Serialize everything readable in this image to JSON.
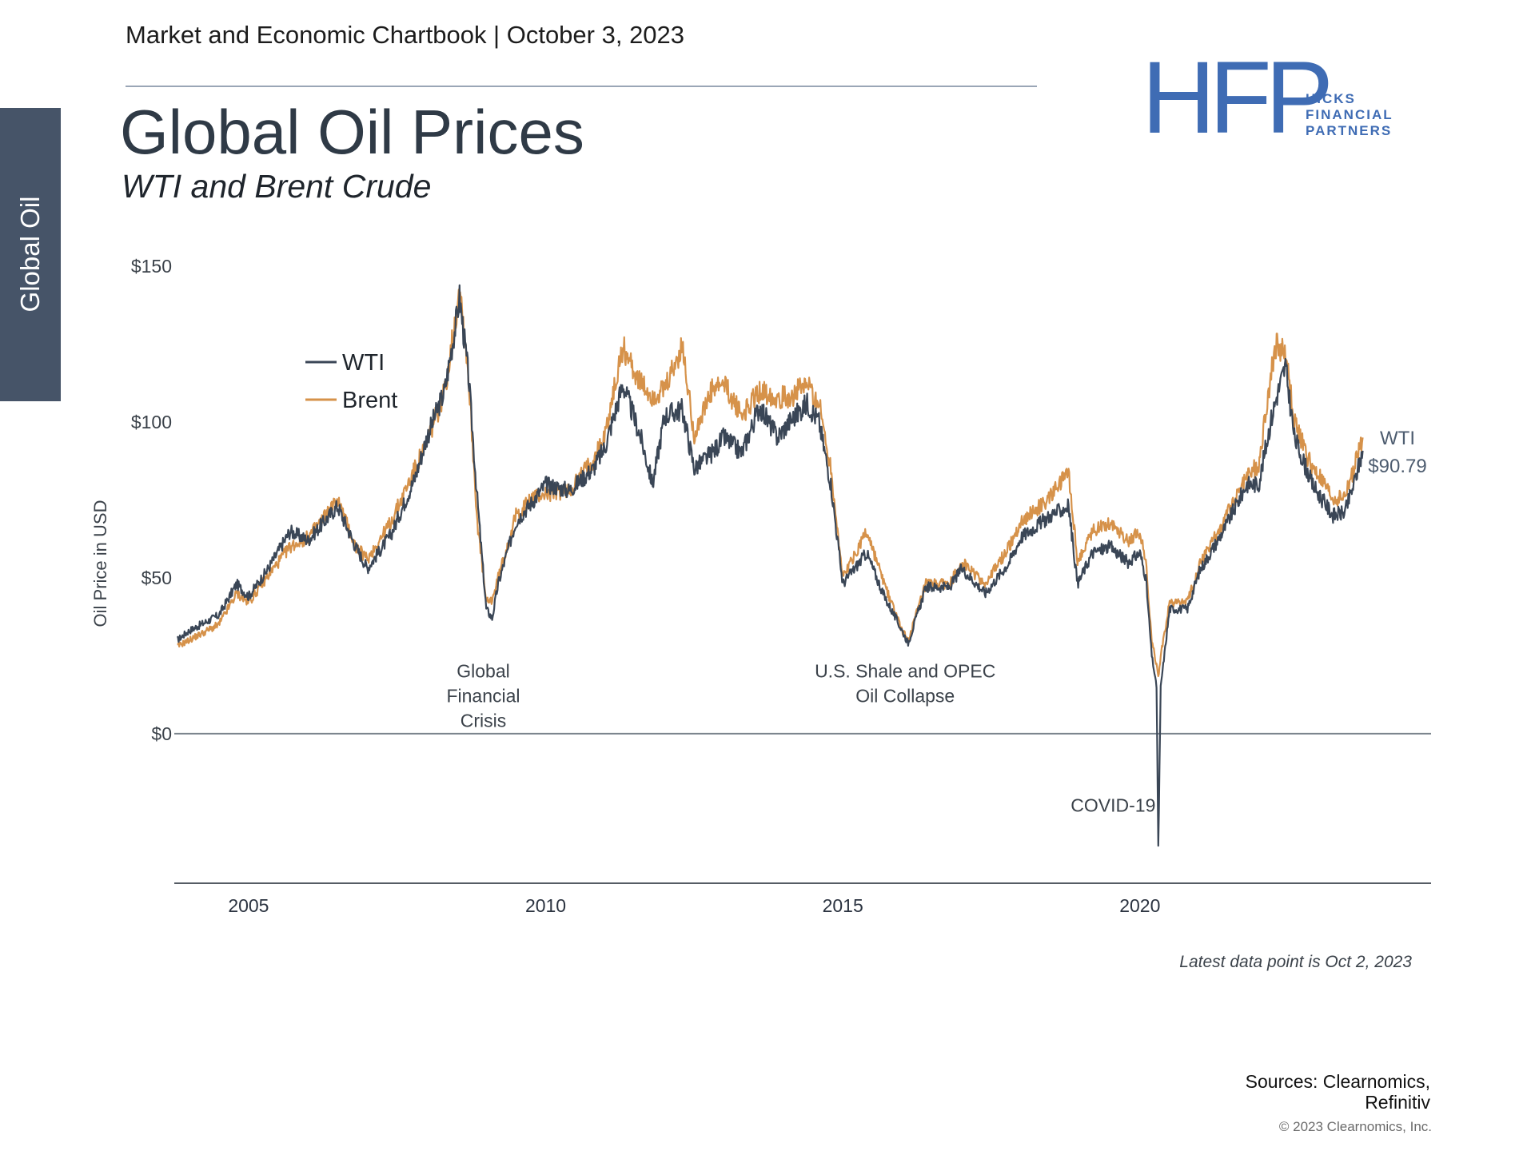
{
  "header": {
    "text": "Market and Economic Chartbook | October 3, 2023"
  },
  "title": "Global Oil Prices",
  "subtitle": "WTI and Brent Crude",
  "side_tab": {
    "label": "Global Oil"
  },
  "logo": {
    "mark": "HFP",
    "words": [
      "HICKS",
      "FINANCIAL",
      "PARTNERS"
    ]
  },
  "footer": {
    "note": "Latest data point is Oct 2, 2023",
    "sources": [
      "Sources: Clearnomics,",
      "Refinitiv"
    ],
    "copyright": "© 2023 Clearnomics, Inc."
  },
  "colors": {
    "wti": "#3a4656",
    "brent": "#d6924a",
    "axis": "#7a838c"
  },
  "chart_data": {
    "type": "line",
    "title": "Global Oil Prices",
    "subtitle": "WTI and Brent Crude",
    "ylabel": "Oil Price in USD",
    "ylim": [
      -48,
      150
    ],
    "xlim": [
      2003.75,
      2024.9
    ],
    "y_ticks": [
      {
        "value": 150,
        "label": "$150"
      },
      {
        "value": 100,
        "label": "$100"
      },
      {
        "value": 50,
        "label": "$50"
      },
      {
        "value": 0,
        "label": "$0"
      }
    ],
    "x_ticks": [
      {
        "value": 2005,
        "label": "2005"
      },
      {
        "value": 2010,
        "label": "2010"
      },
      {
        "value": 2015,
        "label": "2015"
      },
      {
        "value": 2020,
        "label": "2020"
      }
    ],
    "legend": {
      "placement": "top-left",
      "entries": [
        "WTI",
        "Brent"
      ]
    },
    "series": [
      {
        "name": "WTI",
        "points": [
          [
            2003.8,
            30
          ],
          [
            2004.0,
            33
          ],
          [
            2004.5,
            38
          ],
          [
            2004.8,
            48
          ],
          [
            2005.0,
            44
          ],
          [
            2005.3,
            52
          ],
          [
            2005.7,
            65
          ],
          [
            2006.0,
            62
          ],
          [
            2006.5,
            73
          ],
          [
            2006.8,
            60
          ],
          [
            2007.0,
            53
          ],
          [
            2007.4,
            64
          ],
          [
            2007.8,
            82
          ],
          [
            2008.0,
            95
          ],
          [
            2008.3,
            110
          ],
          [
            2008.5,
            133
          ],
          [
            2008.55,
            140
          ],
          [
            2008.7,
            115
          ],
          [
            2008.85,
            75
          ],
          [
            2009.0,
            40
          ],
          [
            2009.1,
            37
          ],
          [
            2009.2,
            48
          ],
          [
            2009.5,
            68
          ],
          [
            2009.8,
            75
          ],
          [
            2010.0,
            80
          ],
          [
            2010.4,
            78
          ],
          [
            2010.8,
            85
          ],
          [
            2011.0,
            92
          ],
          [
            2011.3,
            112
          ],
          [
            2011.6,
            95
          ],
          [
            2011.8,
            80
          ],
          [
            2012.0,
            102
          ],
          [
            2012.3,
            104
          ],
          [
            2012.5,
            85
          ],
          [
            2012.8,
            90
          ],
          [
            2013.0,
            95
          ],
          [
            2013.3,
            90
          ],
          [
            2013.6,
            105
          ],
          [
            2013.9,
            95
          ],
          [
            2014.1,
            100
          ],
          [
            2014.4,
            106
          ],
          [
            2014.6,
            100
          ],
          [
            2014.8,
            80
          ],
          [
            2015.0,
            48
          ],
          [
            2015.4,
            58
          ],
          [
            2015.7,
            44
          ],
          [
            2016.0,
            33
          ],
          [
            2016.1,
            29
          ],
          [
            2016.4,
            47
          ],
          [
            2016.8,
            47
          ],
          [
            2017.0,
            53
          ],
          [
            2017.4,
            45
          ],
          [
            2017.8,
            55
          ],
          [
            2018.0,
            63
          ],
          [
            2018.5,
            70
          ],
          [
            2018.8,
            73
          ],
          [
            2018.95,
            48
          ],
          [
            2019.2,
            58
          ],
          [
            2019.5,
            60
          ],
          [
            2019.8,
            55
          ],
          [
            2020.0,
            58
          ],
          [
            2020.1,
            50
          ],
          [
            2020.2,
            25
          ],
          [
            2020.28,
            15
          ],
          [
            2020.31,
            -37
          ],
          [
            2020.35,
            15
          ],
          [
            2020.5,
            40
          ],
          [
            2020.8,
            40
          ],
          [
            2021.0,
            52
          ],
          [
            2021.4,
            65
          ],
          [
            2021.8,
            80
          ],
          [
            2022.0,
            80
          ],
          [
            2022.2,
            100
          ],
          [
            2022.3,
            108
          ],
          [
            2022.45,
            118
          ],
          [
            2022.6,
            95
          ],
          [
            2022.9,
            80
          ],
          [
            2023.0,
            77
          ],
          [
            2023.25,
            70
          ],
          [
            2023.45,
            71
          ],
          [
            2023.6,
            80
          ],
          [
            2023.75,
            90.79
          ]
        ]
      },
      {
        "name": "Brent",
        "points": [
          [
            2003.8,
            28
          ],
          [
            2004.0,
            30
          ],
          [
            2004.5,
            35
          ],
          [
            2004.8,
            45
          ],
          [
            2005.0,
            42
          ],
          [
            2005.3,
            50
          ],
          [
            2005.7,
            60
          ],
          [
            2006.0,
            63
          ],
          [
            2006.5,
            75
          ],
          [
            2006.8,
            60
          ],
          [
            2007.0,
            56
          ],
          [
            2007.4,
            68
          ],
          [
            2007.8,
            85
          ],
          [
            2008.0,
            93
          ],
          [
            2008.3,
            110
          ],
          [
            2008.5,
            135
          ],
          [
            2008.55,
            145
          ],
          [
            2008.7,
            115
          ],
          [
            2008.85,
            68
          ],
          [
            2009.0,
            42
          ],
          [
            2009.1,
            43
          ],
          [
            2009.2,
            50
          ],
          [
            2009.5,
            70
          ],
          [
            2009.8,
            76
          ],
          [
            2010.0,
            77
          ],
          [
            2010.4,
            78
          ],
          [
            2010.8,
            88
          ],
          [
            2011.0,
            96
          ],
          [
            2011.3,
            124
          ],
          [
            2011.6,
            112
          ],
          [
            2011.8,
            108
          ],
          [
            2012.0,
            110
          ],
          [
            2012.3,
            124
          ],
          [
            2012.5,
            96
          ],
          [
            2012.8,
            110
          ],
          [
            2013.0,
            112
          ],
          [
            2013.3,
            102
          ],
          [
            2013.6,
            110
          ],
          [
            2013.9,
            108
          ],
          [
            2014.1,
            108
          ],
          [
            2014.4,
            112
          ],
          [
            2014.6,
            106
          ],
          [
            2014.8,
            85
          ],
          [
            2015.0,
            50
          ],
          [
            2015.4,
            65
          ],
          [
            2015.7,
            48
          ],
          [
            2016.0,
            33
          ],
          [
            2016.1,
            30
          ],
          [
            2016.4,
            48
          ],
          [
            2016.8,
            48
          ],
          [
            2017.0,
            55
          ],
          [
            2017.4,
            48
          ],
          [
            2017.8,
            60
          ],
          [
            2018.0,
            68
          ],
          [
            2018.5,
            76
          ],
          [
            2018.8,
            84
          ],
          [
            2018.95,
            55
          ],
          [
            2019.2,
            65
          ],
          [
            2019.5,
            68
          ],
          [
            2019.8,
            62
          ],
          [
            2020.0,
            65
          ],
          [
            2020.1,
            55
          ],
          [
            2020.2,
            30
          ],
          [
            2020.28,
            22
          ],
          [
            2020.31,
            18
          ],
          [
            2020.35,
            25
          ],
          [
            2020.5,
            42
          ],
          [
            2020.8,
            42
          ],
          [
            2021.0,
            54
          ],
          [
            2021.4,
            68
          ],
          [
            2021.8,
            83
          ],
          [
            2022.0,
            86
          ],
          [
            2022.2,
            115
          ],
          [
            2022.3,
            125
          ],
          [
            2022.45,
            122
          ],
          [
            2022.6,
            100
          ],
          [
            2022.9,
            85
          ],
          [
            2023.0,
            83
          ],
          [
            2023.25,
            75
          ],
          [
            2023.45,
            76
          ],
          [
            2023.6,
            85
          ],
          [
            2023.75,
            95
          ]
        ]
      }
    ],
    "annotations": [
      {
        "x": 2008.95,
        "y": 18,
        "lines": [
          "Global",
          "Financial",
          "Crisis"
        ]
      },
      {
        "x": 2016.05,
        "y": 18,
        "lines": [
          "U.S. Shale and OPEC",
          "Oil Collapse"
        ]
      },
      {
        "x": 2019.55,
        "y": -25,
        "lines": [
          "COVID-19"
        ]
      }
    ],
    "end_label": {
      "lines": [
        "WTI",
        "$90.79"
      ]
    }
  }
}
